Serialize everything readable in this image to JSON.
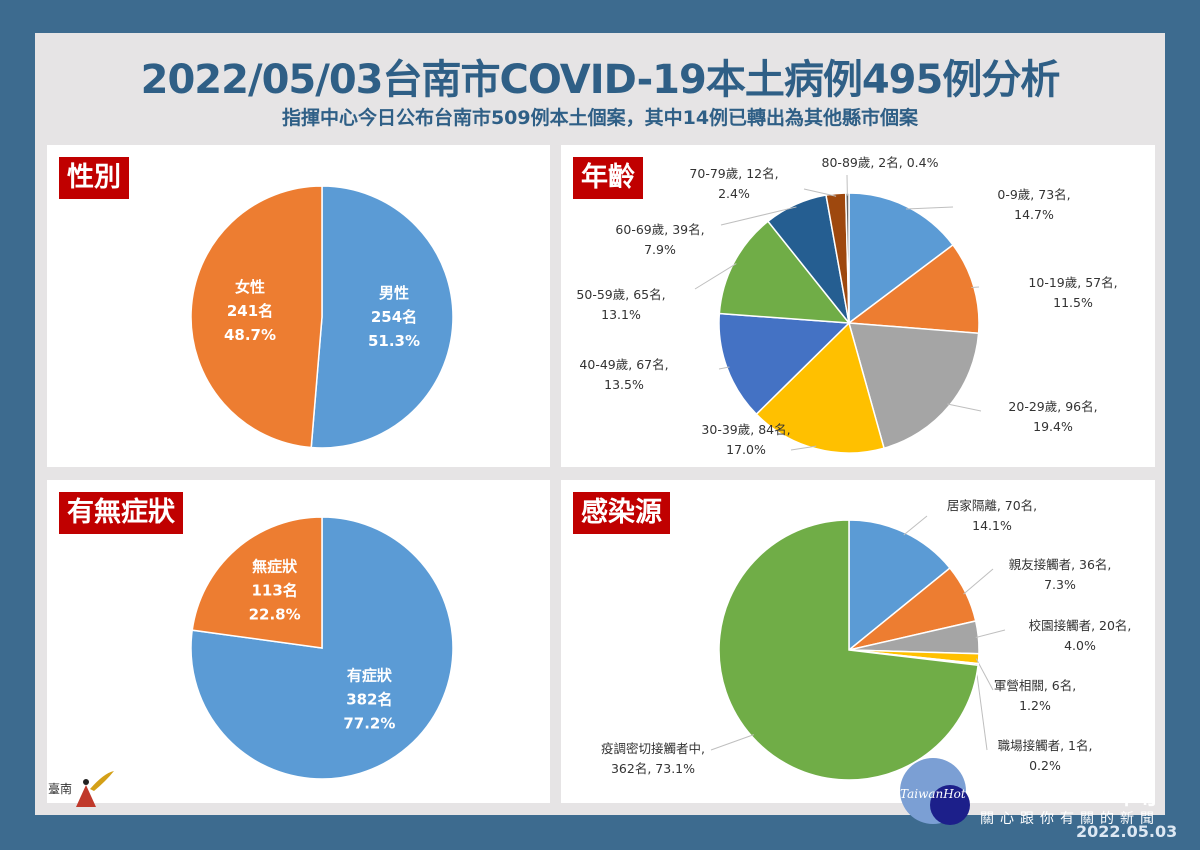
{
  "header": {
    "title": "2022/05/03台南市COVID-19本土病例495例分析",
    "subtitle": "指揮中心今日公布台南市509例本土個案，其中14例已轉出為其他縣市個案"
  },
  "colors": {
    "blue": "#5b9bd5",
    "orange": "#ed7d31",
    "gray": "#a5a5a5",
    "yellow": "#ffc000",
    "royal": "#4472c4",
    "green": "#70ad47",
    "navy": "#255e91",
    "brown": "#9e480e",
    "tag": "#c00000"
  },
  "chart_data": [
    {
      "type": "pie",
      "title": "性別",
      "labels_inside": true,
      "slices": [
        {
          "name": "男性",
          "count": "254名",
          "pct": "51.3%",
          "value": 254,
          "color": "#5b9bd5"
        },
        {
          "name": "女性",
          "count": "241名",
          "pct": "48.7%",
          "value": 241,
          "color": "#ed7d31"
        }
      ]
    },
    {
      "type": "pie",
      "title": "年齡",
      "labels_inside": false,
      "slices": [
        {
          "line1": "0-9歲, 73名,",
          "line2": "14.7%",
          "value": 73,
          "color": "#5b9bd5"
        },
        {
          "line1": "10-19歲, 57名,",
          "line2": "11.5%",
          "value": 57,
          "color": "#ed7d31"
        },
        {
          "line1": "20-29歲, 96名,",
          "line2": "19.4%",
          "value": 96,
          "color": "#a5a5a5"
        },
        {
          "line1": "30-39歲, 84名,",
          "line2": "17.0%",
          "value": 84,
          "color": "#ffc000"
        },
        {
          "line1": "40-49歲, 67名,",
          "line2": "13.5%",
          "value": 67,
          "color": "#4472c4"
        },
        {
          "line1": "50-59歲, 65名,",
          "line2": "13.1%",
          "value": 65,
          "color": "#70ad47"
        },
        {
          "line1": "60-69歲, 39名,",
          "line2": "7.9%",
          "value": 39,
          "color": "#255e91"
        },
        {
          "line1": "70-79歲, 12名,",
          "line2": "2.4%",
          "value": 12,
          "color": "#9e480e"
        },
        {
          "line1": "80-89歲, 2名, 0.4%",
          "line2": "",
          "value": 2,
          "color": "#636363"
        }
      ]
    },
    {
      "type": "pie",
      "title": "有無症狀",
      "labels_inside": true,
      "slices": [
        {
          "name": "有症狀",
          "count": "382名",
          "pct": "77.2%",
          "value": 382,
          "color": "#5b9bd5"
        },
        {
          "name": "無症狀",
          "count": "113名",
          "pct": "22.8%",
          "value": 113,
          "color": "#ed7d31"
        }
      ]
    },
    {
      "type": "pie",
      "title": "感染源",
      "labels_inside": false,
      "slices": [
        {
          "line1": "居家隔離, 70名,",
          "line2": "14.1%",
          "value": 70,
          "color": "#5b9bd5"
        },
        {
          "line1": "親友接觸者, 36名,",
          "line2": "7.3%",
          "value": 36,
          "color": "#ed7d31"
        },
        {
          "line1": "校園接觸者, 20名,",
          "line2": "4.0%",
          "value": 20,
          "color": "#a5a5a5"
        },
        {
          "line1": "軍營相關, 6名,",
          "line2": "1.2%",
          "value": 6,
          "color": "#ffc000"
        },
        {
          "line1": "職場接觸者, 1名,",
          "line2": "0.2%",
          "value": 1,
          "color": "#4472c4"
        },
        {
          "line1": "疫調密切接觸者中,",
          "line2": "362名, 73.1%",
          "value": 362,
          "color": "#70ad47"
        }
      ]
    }
  ],
  "watermark": {
    "brand": "TaiwanHot",
    "big_char": "聞",
    "slogan": "關心跟你有關的新聞",
    "date": "2022.05.03"
  },
  "city_logo": {
    "text": "臺南"
  }
}
